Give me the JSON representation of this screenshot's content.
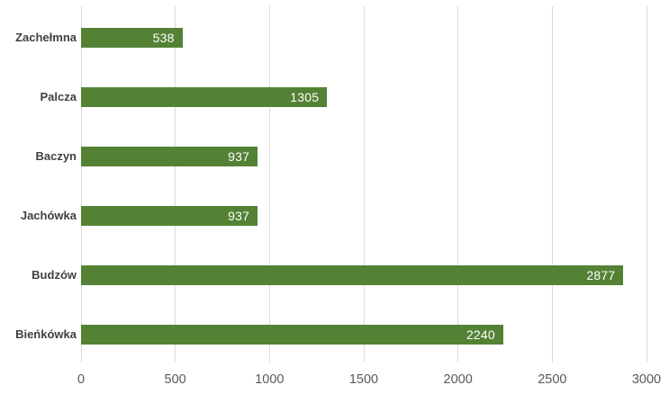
{
  "chart_data": {
    "type": "bar",
    "orientation": "horizontal",
    "title": "",
    "xlabel": "",
    "ylabel": "",
    "categories": [
      "Zachełmna",
      "Palcza",
      "Baczyn",
      "Jachówka",
      "Budzów",
      "Bieńkówka"
    ],
    "values": [
      538,
      1305,
      937,
      937,
      2877,
      2240
    ],
    "value_labels": [
      "538",
      "1305",
      "937",
      "937",
      "2877",
      "2240"
    ],
    "x_ticks": [
      0,
      500,
      1000,
      1500,
      2000,
      2500,
      3000
    ],
    "xlim": [
      0,
      3000
    ],
    "grid": "vertical-major-gridlines",
    "legend": "none",
    "colors": {
      "bar": "#548235",
      "gridline": "#d9d9d9",
      "tick_label": "#595959",
      "category_label": "#404040",
      "value_label": "#ffffff",
      "background": "#ffffff"
    }
  }
}
